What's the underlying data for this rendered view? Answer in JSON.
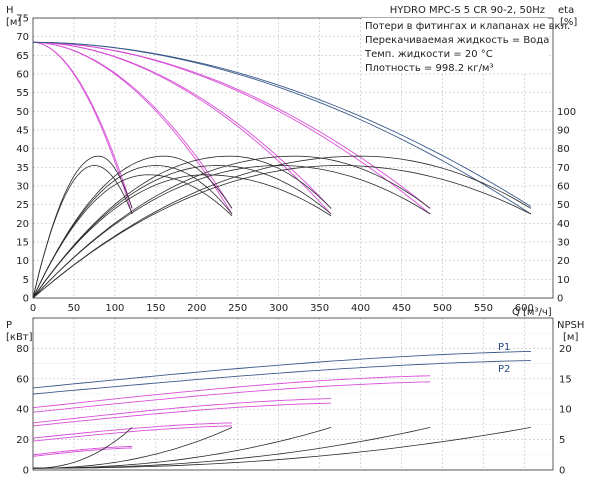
{
  "chart_data": [
    {
      "type": "line",
      "name": "head_efficiency",
      "info_box": {
        "title": "HYDRO MPC-S 5 CR 90-2, 50Hz",
        "lines": [
          "Потери в фитингах и клапанах не вкл.",
          "Перекачиваемая жидкость = Вода",
          "Темп. жидкости = 20 °C",
          "Плотность = 998.2 кг/м³"
        ]
      },
      "y_left": {
        "label": "H",
        "unit": "[м]",
        "ticks": [
          0,
          5,
          10,
          15,
          20,
          25,
          30,
          35,
          40,
          45,
          50,
          55,
          60,
          65,
          70,
          75
        ]
      },
      "y_right": {
        "label": "eta",
        "unit": "[%]",
        "ticks": [
          0,
          10,
          20,
          30,
          40,
          50,
          60,
          70,
          80,
          90,
          100
        ]
      },
      "x_axis": {
        "label": "Q",
        "unit": "[м³/ч]",
        "ticks": [
          0,
          50,
          100,
          150,
          200,
          250,
          300,
          350,
          400,
          450,
          500,
          550,
          600
        ],
        "range": [
          0,
          635
        ]
      },
      "ylim_left": [
        0,
        75
      ],
      "ylim_right": [
        0,
        100
      ],
      "pump_curves": [
        {
          "color": "#d94fd9",
          "q_max": 121,
          "h_shutoff": 68.5,
          "h_end": 22.5
        },
        {
          "color": "#d94fd9",
          "q_max": 121,
          "h_shutoff": 68.5,
          "h_end": 24.0
        },
        {
          "color": "#d94fd9",
          "q_max": 243,
          "h_shutoff": 68.5,
          "h_end": 22.5
        },
        {
          "color": "#d94fd9",
          "q_max": 243,
          "h_shutoff": 68.5,
          "h_end": 24.0
        },
        {
          "color": "#d94fd9",
          "q_max": 364,
          "h_shutoff": 68.5,
          "h_end": 22.5
        },
        {
          "color": "#d94fd9",
          "q_max": 364,
          "h_shutoff": 68.5,
          "h_end": 24.0
        },
        {
          "color": "#d94fd9",
          "q_max": 485,
          "h_shutoff": 68.5,
          "h_end": 22.5
        },
        {
          "color": "#d94fd9",
          "q_max": 485,
          "h_shutoff": 68.5,
          "h_end": 24.0
        },
        {
          "color": "#3a5a8a",
          "q_max": 608,
          "h_shutoff": 68.5,
          "h_end": 22.5
        },
        {
          "color": "#3a5a8a",
          "q_max": 608,
          "h_shutoff": 68.5,
          "h_end": 24.5
        }
      ],
      "efficiency_curves": [
        {
          "q_max": 121,
          "q_peak": 80,
          "eta_peak": 76,
          "eta_end": 48
        },
        {
          "q_max": 121,
          "q_peak": 75,
          "eta_peak": 71,
          "eta_end": 45
        },
        {
          "q_max": 243,
          "q_peak": 160,
          "eta_peak": 76,
          "eta_end": 48
        },
        {
          "q_max": 243,
          "q_peak": 150,
          "eta_peak": 71,
          "eta_end": 45
        },
        {
          "q_max": 243,
          "q_peak": 140,
          "eta_peak": 66,
          "eta_end": 44
        },
        {
          "q_max": 364,
          "q_peak": 240,
          "eta_peak": 76,
          "eta_end": 48
        },
        {
          "q_max": 364,
          "q_peak": 225,
          "eta_peak": 71,
          "eta_end": 45
        },
        {
          "q_max": 364,
          "q_peak": 210,
          "eta_peak": 66,
          "eta_end": 44
        },
        {
          "q_max": 485,
          "q_peak": 320,
          "eta_peak": 76,
          "eta_end": 48
        },
        {
          "q_max": 485,
          "q_peak": 300,
          "eta_peak": 71,
          "eta_end": 45
        },
        {
          "q_max": 608,
          "q_peak": 400,
          "eta_peak": 76,
          "eta_end": 48
        },
        {
          "q_max": 608,
          "q_peak": 375,
          "eta_peak": 71,
          "eta_end": 45
        }
      ]
    },
    {
      "type": "line",
      "name": "power_npsh",
      "y_left": {
        "label": "P",
        "unit": "[кВт]",
        "ticks": [
          0,
          20,
          40,
          60,
          80
        ]
      },
      "y_right": {
        "label": "NPSH",
        "unit": "[м]",
        "ticks": [
          0,
          5,
          10,
          15,
          20
        ]
      },
      "x_axis": {
        "range": [
          0,
          635
        ]
      },
      "ylim_left": [
        0,
        100
      ],
      "ylim_right": [
        0,
        25
      ],
      "power_curves": [
        {
          "name": "P1",
          "color": "#3a5a8a",
          "q_max": 608,
          "p_start": 54,
          "p_end": 78
        },
        {
          "name": "P2",
          "color": "#3a5a8a",
          "q_max": 608,
          "p_start": 50,
          "p_end": 72
        },
        {
          "name": "",
          "color": "#d94fd9",
          "q_max": 485,
          "p_start": 41,
          "p_end": 62
        },
        {
          "name": "",
          "color": "#d94fd9",
          "q_max": 485,
          "p_start": 38,
          "p_end": 58
        },
        {
          "name": "",
          "color": "#d94fd9",
          "q_max": 364,
          "p_start": 31,
          "p_end": 47
        },
        {
          "name": "",
          "color": "#d94fd9",
          "q_max": 364,
          "p_start": 29,
          "p_end": 44
        },
        {
          "name": "",
          "color": "#d94fd9",
          "q_max": 243,
          "p_start": 21,
          "p_end": 31
        },
        {
          "name": "",
          "color": "#d94fd9",
          "q_max": 243,
          "p_start": 19,
          "p_end": 29
        },
        {
          "name": "",
          "color": "#d94fd9",
          "q_max": 121,
          "p_start": 10,
          "p_end": 15.5
        },
        {
          "name": "",
          "color": "#d94fd9",
          "q_max": 121,
          "p_start": 9,
          "p_end": 14.5
        }
      ],
      "npsh_curves": [
        {
          "q_max": 121,
          "npsh_start": 0.3,
          "npsh_end": 7.0
        },
        {
          "q_max": 243,
          "npsh_start": 0.3,
          "npsh_end": 7.0
        },
        {
          "q_max": 364,
          "npsh_start": 0.3,
          "npsh_end": 7.0
        },
        {
          "q_max": 485,
          "npsh_start": 0.3,
          "npsh_end": 7.0
        },
        {
          "q_max": 608,
          "npsh_start": 0.3,
          "npsh_end": 7.0
        }
      ]
    }
  ]
}
